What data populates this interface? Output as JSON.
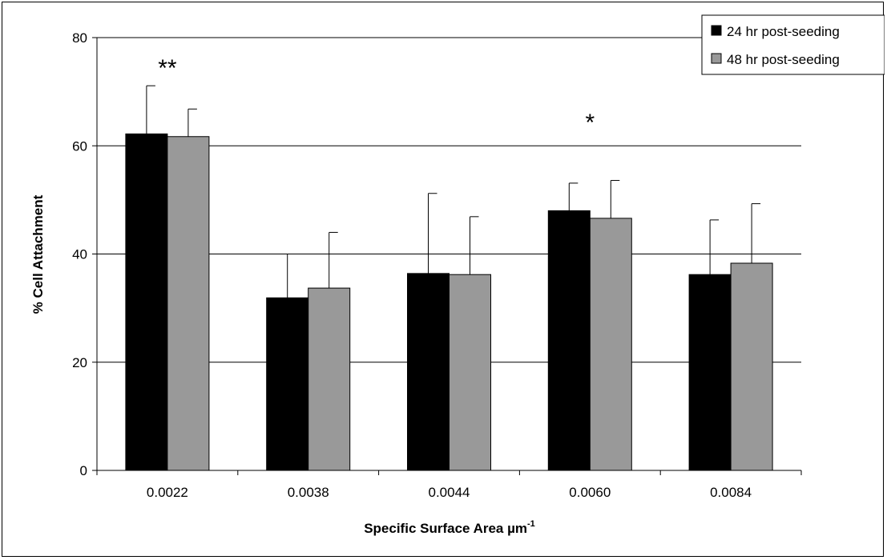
{
  "chart_data": {
    "type": "bar",
    "xlabel": "Specific Surface Area µm",
    "xlabel_superscript": "-1",
    "ylabel": "% Cell Attachment",
    "ylim": [
      0,
      80
    ],
    "yticks": [
      0,
      20,
      40,
      60,
      80
    ],
    "grid": "horizontal major gridlines",
    "legend_position": "top-right",
    "categories": [
      "0.0022",
      "0.0038",
      "0.0044",
      "0.0060",
      "0.0084"
    ],
    "series": [
      {
        "name": "24 hr post-seeding",
        "color": "#000000",
        "values": [
          62.2,
          31.9,
          36.4,
          48.0,
          36.2
        ],
        "error_plus": [
          8.9,
          8.1,
          14.8,
          5.1,
          10.1
        ]
      },
      {
        "name": "48 hr post-seeding",
        "color": "#999999",
        "values": [
          61.7,
          33.7,
          36.2,
          46.6,
          38.3
        ],
        "error_plus": [
          5.1,
          10.3,
          10.7,
          7.0,
          11.0
        ]
      }
    ],
    "annotations": [
      {
        "text": "**",
        "category": "0.0022"
      },
      {
        "text": "*",
        "category": "0.0060"
      }
    ]
  }
}
